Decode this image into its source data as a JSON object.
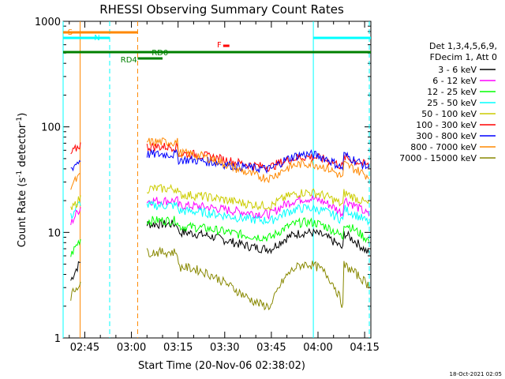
{
  "chart_data": {
    "type": "line",
    "title": "RHESSI Observing Summary Count Rates",
    "xlabel": "Start Time (20-Nov-06 02:38:02)",
    "ylabel_parts": [
      "Count Rate (s",
      "-1",
      " detector",
      "-1",
      ")"
    ],
    "y_scale": "log",
    "ylim": [
      1,
      1000
    ],
    "y_ticks": [
      {
        "value": 1,
        "label": "1"
      },
      {
        "value": 10,
        "label": "10"
      },
      {
        "value": 100,
        "label": "100"
      },
      {
        "value": 1000,
        "label": "1000"
      }
    ],
    "xlim_minutes": [
      38.03,
      137.0
    ],
    "x_ticks": [
      {
        "minute": 45,
        "label": "02:45"
      },
      {
        "minute": 60,
        "label": "03:00"
      },
      {
        "minute": 75,
        "label": "03:15"
      },
      {
        "minute": 90,
        "label": "03:30"
      },
      {
        "minute": 105,
        "label": "03:45"
      },
      {
        "minute": 120,
        "label": "04:00"
      },
      {
        "minute": 135,
        "label": "04:15"
      }
    ],
    "legend_title": [
      "Det 1,3,4,5,6,9,",
      "FDecim 1, Att 0"
    ],
    "legend_placement": "right",
    "series": [
      {
        "name": "3 - 6 keV",
        "color": "#000000",
        "early": [
          3.5,
          4.2,
          5.5
        ],
        "peak": 12,
        "valley": 7,
        "late": 10,
        "end": 6
      },
      {
        "name": "6 - 12 keV",
        "color": "#ff00ff",
        "early": [
          12,
          14,
          18
        ],
        "peak": 20,
        "valley": 15,
        "late": 21,
        "end": 14
      },
      {
        "name": "12 - 25 keV",
        "color": "#00ff00",
        "early": [
          6,
          7,
          9
        ],
        "peak": 13,
        "valley": 9,
        "late": 12.5,
        "end": 8
      },
      {
        "name": "25 - 50 keV",
        "color": "#00ffff",
        "early": [
          14,
          16,
          20
        ],
        "peak": 18,
        "valley": 13,
        "late": 17,
        "end": 12
      },
      {
        "name": "50 - 100 keV",
        "color": "#cccc00",
        "early": [
          16,
          18,
          22
        ],
        "peak": 26,
        "valley": 18,
        "late": 24,
        "end": 18
      },
      {
        "name": "100 - 300 keV",
        "color": "#ff0000",
        "early": [
          55,
          60,
          70
        ],
        "peak": 65,
        "valley": 42,
        "late": 52,
        "end": 42
      },
      {
        "name": "300 - 800 keV",
        "color": "#0000ff",
        "early": [
          40,
          42,
          50
        ],
        "peak": 55,
        "valley": 40,
        "late": 55,
        "end": 40
      },
      {
        "name": "800 - 7000 keV",
        "color": "#ff8800",
        "early": [
          28,
          30,
          35
        ],
        "peak": 72,
        "valley": 33,
        "late": 45,
        "end": 33
      },
      {
        "name": "7000 - 15000 keV",
        "color": "#888800",
        "early": [
          2.5,
          2.5,
          3.5
        ],
        "peak": 6.5,
        "valley": 2,
        "late": 5,
        "end": 3
      }
    ],
    "annotations": [
      {
        "label": "S",
        "color": "#ff8800",
        "start_minute": 38.03,
        "end_minute": 62
      },
      {
        "label": "N",
        "color": "#00ffff",
        "start_minute": 38.03,
        "end_minute": 53
      },
      {
        "label": "N",
        "color": "#00ffff",
        "start_minute": 118.5,
        "end_minute": 137.0
      },
      {
        "label": "RD0",
        "color": "#008000",
        "start_minute": 38.03,
        "end_minute": 137.0
      },
      {
        "label": "RD4",
        "color": "#008000",
        "start_minute": 62,
        "end_minute": 70
      },
      {
        "label": "F",
        "color": "#ff0000",
        "start_minute": 89.5,
        "end_minute": 91.5
      }
    ],
    "annotation_labels": {
      "S": "S",
      "N": "N",
      "RD0": "RD0",
      "RD4": "RD4",
      "F": "F"
    },
    "vertical_markers": [
      {
        "minute": 38.03,
        "color": "#00ffff",
        "style": "solid"
      },
      {
        "minute": 43.5,
        "color": "#ff8800",
        "style": "solid"
      },
      {
        "minute": 53,
        "color": "#00ffff",
        "style": "dashed"
      },
      {
        "minute": 62,
        "color": "#ff8800",
        "style": "dashed"
      },
      {
        "minute": 118.5,
        "color": "#00ffff",
        "style": "solid"
      },
      {
        "minute": 136.5,
        "color": "#00ffff",
        "style": "dashed"
      }
    ],
    "footer_timestamp": "18-Oct-2021 02:05"
  }
}
